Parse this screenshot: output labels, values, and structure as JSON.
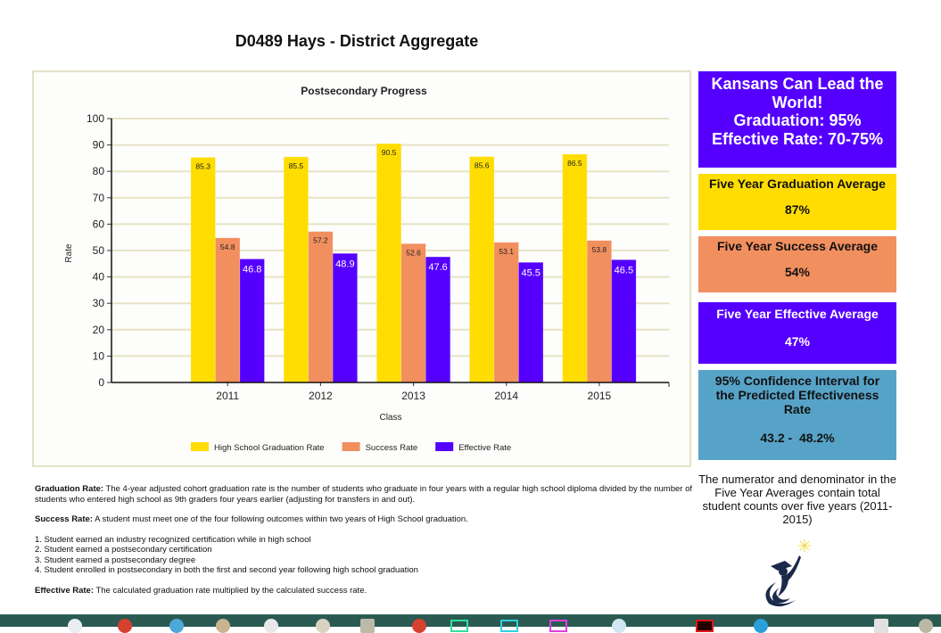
{
  "page": {
    "title": "D0489 Hays - District Aggregate"
  },
  "chart_data": {
    "type": "bar",
    "title": "Postsecondary Progress",
    "xlabel": "Class",
    "ylabel": "Rate",
    "ylim": [
      0,
      100
    ],
    "yticks": [
      0,
      10,
      20,
      30,
      40,
      50,
      60,
      70,
      80,
      90,
      100
    ],
    "grid": true,
    "legend_position": "bottom",
    "categories": [
      "2011",
      "2012",
      "2013",
      "2014",
      "2015"
    ],
    "series": [
      {
        "name": "High School Graduation Rate",
        "color": "#ffdd00",
        "label_color": "#222222",
        "values": [
          85.3,
          85.5,
          90.5,
          85.6,
          86.5
        ]
      },
      {
        "name": "Success Rate",
        "color": "#f28f5f",
        "label_color": "#222222",
        "values": [
          54.8,
          57.2,
          52.6,
          53.1,
          53.8
        ]
      },
      {
        "name": "Effective Rate",
        "color": "#5500ff",
        "label_color": "#ffffff",
        "values": [
          46.8,
          48.9,
          47.6,
          45.5,
          46.5
        ]
      }
    ]
  },
  "side_panel": {
    "goal": {
      "lines": [
        "Kansans Can Lead the",
        "World!",
        "Graduation: 95%",
        "Effective Rate: 70-75%"
      ],
      "color": "#5500ff"
    },
    "graduation_avg": {
      "label": "Five Year Graduation Average",
      "value": "87%",
      "color": "#ffdd00"
    },
    "success_avg": {
      "label": "Five Year Success Average",
      "value": "54%",
      "color": "#f28f5f"
    },
    "effective_avg": {
      "label": "Five Year Effective Average",
      "value": "47%",
      "color": "#5500ff"
    },
    "confidence": {
      "lines": [
        "95% Confidence Interval for",
        "the Predicted Effectiveness",
        "Rate"
      ],
      "value": "43.2 -  48.2%",
      "color": "#57a3c8"
    },
    "note": "The numerator and denominator in the Five Year Averages contain total student counts over five years (2011-2015)"
  },
  "definitions": {
    "graduation": {
      "term": "Graduation Rate:",
      "text": " The 4-year adjusted cohort graduation rate is the number of students who graduate in four years with a regular high school diploma divided by the number of  students who entered high school as 9th graders four years earlier (adjusting for transfers in and out)."
    },
    "success": {
      "term": "Success Rate:",
      "text": " A student must meet one of the four following outcomes within two years of High School graduation."
    },
    "outcomes": [
      "1. Student earned an industry recognized certification while in high school",
      "2. Student earned a postsecondary certification",
      "3. Student earned a postsecondary degree",
      "4. Student enrolled in postsecondary in both the first and second year following high school graduation"
    ],
    "effective": {
      "term": "Effective Rate:",
      "text": " The calculated graduation rate multiplied by the calculated success rate."
    }
  }
}
